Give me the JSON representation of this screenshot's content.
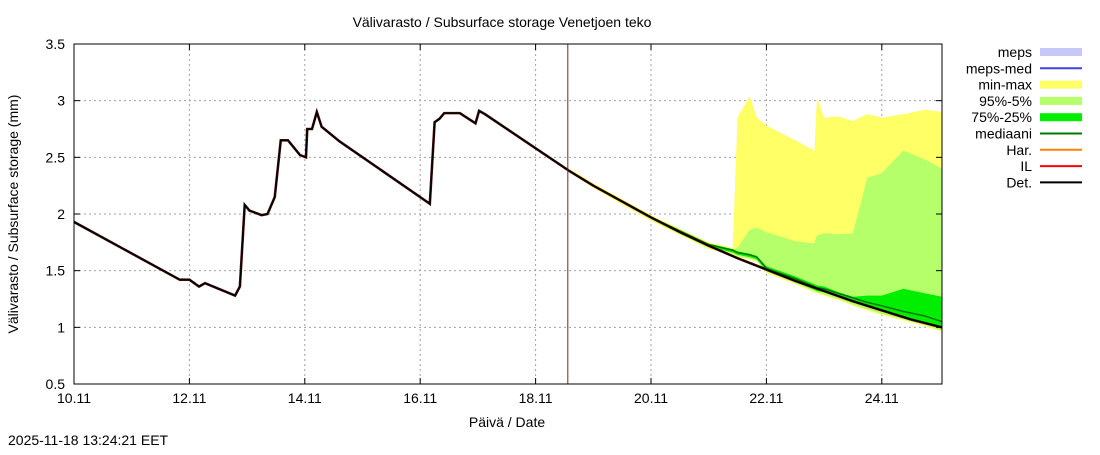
{
  "chart_data": {
    "type": "area",
    "title": "Välivarasto / Subsurface storage  Venetjoen teko",
    "xlabel": "Päivä / Date",
    "ylabel": "Välivarasto / Subsurface storage (mm)",
    "ylim": [
      0.5,
      3.5
    ],
    "xlim": [
      "2025-11-10 00:00",
      "2025-11-25 01:00"
    ],
    "y_ticks": [
      "0.5",
      "1",
      "1.5",
      "2",
      "2.5",
      "3",
      "3.5"
    ],
    "x_ticks": [
      {
        "label": "10.11",
        "date": "2025-11-10 00:00"
      },
      {
        "label": "12.11",
        "date": "2025-11-12 00:00"
      },
      {
        "label": "14.11",
        "date": "2025-11-14 00:00"
      },
      {
        "label": "16.11",
        "date": "2025-11-16 00:00"
      },
      {
        "label": "18.11",
        "date": "2025-11-18 00:00"
      },
      {
        "label": "20.11",
        "date": "2025-11-20 00:00"
      },
      {
        "label": "22.11",
        "date": "2025-11-22 00:00"
      },
      {
        "label": "24.11",
        "date": "2025-11-24 00:00"
      }
    ],
    "grid": true,
    "legend_position": "right",
    "now_marker": "2025-11-18 13:24",
    "legend": [
      {
        "label": "meps",
        "kind": "band",
        "color": "#c8c8f8"
      },
      {
        "label": "meps-med",
        "kind": "line",
        "color": "#4040e0"
      },
      {
        "label": "min-max",
        "kind": "band",
        "color": "#ffff66"
      },
      {
        "label": "95%-5%",
        "kind": "band",
        "color": "#b4ff6a"
      },
      {
        "label": "75%-25%",
        "kind": "band",
        "color": "#00ee00"
      },
      {
        "label": "mediaani",
        "kind": "line",
        "color": "#007700"
      },
      {
        "label": "Har.",
        "kind": "line",
        "color": "#ff8000"
      },
      {
        "label": "IL",
        "kind": "line",
        "color": "#ff0000"
      },
      {
        "label": "Det.",
        "kind": "line",
        "color": "#000000"
      }
    ],
    "forecast_times": [
      "2025-11-18 14:00",
      "2025-11-19 00:00",
      "2025-11-20 00:00",
      "2025-11-21 00:00",
      "2025-11-21 10:00",
      "2025-11-21 12:00",
      "2025-11-21 17:00",
      "2025-11-21 20:00",
      "2025-11-22 00:00",
      "2025-11-22 12:00",
      "2025-11-22 20:00",
      "2025-11-22 21:00",
      "2025-11-23 00:00",
      "2025-11-23 06:00",
      "2025-11-23 12:00",
      "2025-11-23 18:00",
      "2025-11-24 00:00",
      "2025-11-24 09:00",
      "2025-11-24 18:00",
      "2025-11-25 01:00"
    ],
    "bands": {
      "min-max": {
        "low": [
          2.37,
          2.23,
          1.94,
          1.69,
          1.64,
          1.62,
          1.6,
          1.58,
          1.48,
          1.38,
          1.31,
          1.3,
          1.28,
          1.24,
          1.19,
          1.15,
          1.11,
          1.06,
          1.01,
          0.96
        ],
        "high": [
          2.4,
          2.27,
          1.99,
          1.75,
          1.7,
          2.85,
          3.04,
          2.85,
          2.78,
          2.65,
          2.56,
          3.02,
          2.85,
          2.86,
          2.82,
          2.88,
          2.85,
          2.88,
          2.92,
          2.9
        ]
      },
      "95%-5%": {
        "low": [
          2.38,
          2.24,
          1.95,
          1.7,
          1.65,
          1.63,
          1.61,
          1.59,
          1.49,
          1.39,
          1.32,
          1.31,
          1.29,
          1.25,
          1.2,
          1.16,
          1.12,
          1.07,
          1.02,
          0.97
        ],
        "high": [
          2.39,
          2.26,
          1.98,
          1.74,
          1.69,
          1.7,
          1.86,
          1.88,
          1.84,
          1.76,
          1.74,
          1.81,
          1.83,
          1.82,
          1.83,
          2.32,
          2.36,
          2.56,
          2.48,
          2.4
        ]
      },
      "75%-25%": {
        "low": [
          2.37,
          2.24,
          1.96,
          1.71,
          1.66,
          1.64,
          1.62,
          1.6,
          1.5,
          1.4,
          1.33,
          1.32,
          1.31,
          1.27,
          1.22,
          1.18,
          1.14,
          1.09,
          1.04,
          0.99
        ],
        "high": [
          2.38,
          2.26,
          1.98,
          1.74,
          1.69,
          1.67,
          1.65,
          1.63,
          1.54,
          1.45,
          1.38,
          1.37,
          1.36,
          1.31,
          1.27,
          1.28,
          1.28,
          1.34,
          1.3,
          1.27
        ]
      }
    },
    "mediaani": [
      2.38,
      2.25,
      1.97,
      1.73,
      1.68,
      1.66,
      1.64,
      1.62,
      1.52,
      1.43,
      1.36,
      1.35,
      1.34,
      1.3,
      1.26,
      1.22,
      1.19,
      1.14,
      1.1,
      1.05
    ],
    "det": {
      "x": [
        "2025-11-10 00:00",
        "2025-11-11 20:00",
        "2025-11-12 00:00",
        "2025-11-12 04:00",
        "2025-11-12 06:30",
        "2025-11-12 19:00",
        "2025-11-12 21:00",
        "2025-11-12 23:00",
        "2025-11-13 01:00",
        "2025-11-13 06:00",
        "2025-11-13 08:30",
        "2025-11-13 11:30",
        "2025-11-13 14:00",
        "2025-11-13 17:00",
        "2025-11-13 22:00",
        "2025-11-14 00:30",
        "2025-11-14 01:00",
        "2025-11-14 03:00",
        "2025-11-14 05:00",
        "2025-11-14 07:00",
        "2025-11-14 14:30",
        "2025-11-16 02:00",
        "2025-11-16 04:00",
        "2025-11-16 06:00",
        "2025-11-16 08:00",
        "2025-11-16 10:00",
        "2025-11-16 16:30",
        "2025-11-16 23:00",
        "2025-11-17 00:30",
        "2025-11-17 03:00",
        "2025-11-18 14:00",
        "2025-11-19 00:00",
        "2025-11-19 12:00",
        "2025-11-20 00:00",
        "2025-11-20 12:00",
        "2025-11-21 00:00",
        "2025-11-21 12:00",
        "2025-11-22 00:00",
        "2025-11-22 12:00",
        "2025-11-23 00:00",
        "2025-11-23 12:00",
        "2025-11-24 00:00",
        "2025-11-24 12:00",
        "2025-11-25 01:00"
      ],
      "y": [
        1.93,
        1.42,
        1.42,
        1.36,
        1.39,
        1.28,
        1.36,
        2.08,
        2.03,
        1.99,
        2.0,
        2.15,
        2.65,
        2.65,
        2.52,
        2.5,
        2.75,
        2.75,
        2.9,
        2.77,
        2.64,
        2.12,
        2.09,
        2.81,
        2.84,
        2.89,
        2.89,
        2.8,
        2.91,
        2.88,
        2.38,
        2.25,
        2.11,
        1.97,
        1.84,
        1.72,
        1.61,
        1.51,
        1.41,
        1.32,
        1.23,
        1.15,
        1.07,
        1.0
      ]
    }
  },
  "timestamp": "2025-11-18 13:24:21 EET"
}
